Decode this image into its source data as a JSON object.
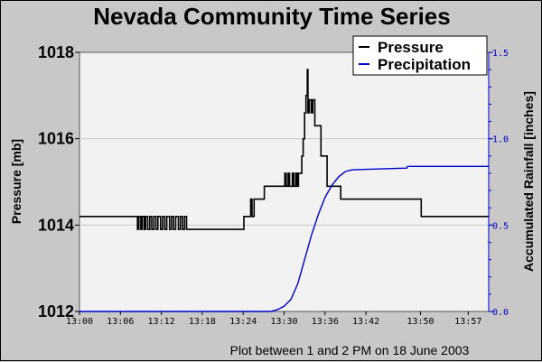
{
  "chart_data": {
    "type": "line",
    "title": "Nevada Community Time Series",
    "ylabel_left": "Pressure [mb]",
    "ylabel_right": "Accumulated Rainfall [inches]",
    "caption": "Plot between 1 and 2 PM on 18 June 2003",
    "xlim": [
      0,
      60
    ],
    "x_tick_values": [
      0,
      6,
      12,
      18,
      24,
      30,
      36,
      42,
      50,
      57
    ],
    "x_tick_labels": [
      "13:00",
      "13:06",
      "13:12",
      "13:18",
      "13:24",
      "13:30",
      "13:36",
      "13:42",
      "13:50",
      "13:57"
    ],
    "ylim_left": [
      1012,
      1018
    ],
    "left_ticks": [
      "1018",
      "1016",
      "1014",
      "1012"
    ],
    "ylim_right": [
      0,
      1.5
    ],
    "right_ticks": [
      "1.5",
      "1.0",
      "0.5",
      "0.0"
    ],
    "grid": true,
    "legend_position": "top-right",
    "series": [
      {
        "name": "Pressure",
        "axis": "left",
        "color": "#000000",
        "step": true,
        "points": [
          [
            0,
            1014.2
          ],
          [
            8.4,
            1014.2
          ],
          [
            8.5,
            1013.9
          ],
          [
            8.7,
            1014.2
          ],
          [
            9.0,
            1013.9
          ],
          [
            9.2,
            1014.2
          ],
          [
            9.5,
            1013.9
          ],
          [
            9.7,
            1014.2
          ],
          [
            10.0,
            1013.9
          ],
          [
            10.3,
            1014.2
          ],
          [
            10.6,
            1013.9
          ],
          [
            10.9,
            1014.2
          ],
          [
            11.2,
            1013.9
          ],
          [
            11.5,
            1014.2
          ],
          [
            11.9,
            1013.9
          ],
          [
            12.2,
            1014.2
          ],
          [
            12.5,
            1013.9
          ],
          [
            12.8,
            1014.2
          ],
          [
            13.2,
            1013.9
          ],
          [
            13.5,
            1014.2
          ],
          [
            13.8,
            1013.9
          ],
          [
            14.1,
            1014.2
          ],
          [
            14.5,
            1013.9
          ],
          [
            14.8,
            1014.2
          ],
          [
            15.1,
            1013.9
          ],
          [
            15.4,
            1014.2
          ],
          [
            15.7,
            1013.9
          ],
          [
            24,
            1013.9
          ],
          [
            24.1,
            1014.2
          ],
          [
            25,
            1014.2
          ],
          [
            25.1,
            1014.6
          ],
          [
            25.3,
            1014.2
          ],
          [
            25.6,
            1014.6
          ],
          [
            27,
            1014.6
          ],
          [
            27.1,
            1014.9
          ],
          [
            30,
            1014.9
          ],
          [
            30.1,
            1015.2
          ],
          [
            30.3,
            1014.9
          ],
          [
            30.6,
            1015.2
          ],
          [
            30.8,
            1014.9
          ],
          [
            31.2,
            1015.2
          ],
          [
            31.4,
            1014.9
          ],
          [
            31.7,
            1015.2
          ],
          [
            31.9,
            1014.9
          ],
          [
            32.1,
            1015.2
          ],
          [
            32.5,
            1015.2
          ],
          [
            32.6,
            1015.6
          ],
          [
            32.8,
            1016.0
          ],
          [
            33.0,
            1016.6
          ],
          [
            33.2,
            1017.0
          ],
          [
            33.4,
            1017.6
          ],
          [
            33.5,
            1016.6
          ],
          [
            33.7,
            1016.9
          ],
          [
            34.0,
            1016.6
          ],
          [
            34.2,
            1016.9
          ],
          [
            34.5,
            1016.3
          ],
          [
            35.3,
            1016.3
          ],
          [
            35.4,
            1015.6
          ],
          [
            36.2,
            1015.6
          ],
          [
            36.3,
            1014.9
          ],
          [
            38.2,
            1014.9
          ],
          [
            38.3,
            1014.6
          ],
          [
            50,
            1014.6
          ],
          [
            50.1,
            1014.2
          ],
          [
            60,
            1014.2
          ]
        ]
      },
      {
        "name": "Precipitation",
        "axis": "right",
        "color": "#0000cc",
        "step": false,
        "points": [
          [
            0,
            0
          ],
          [
            28,
            0
          ],
          [
            29,
            0.01
          ],
          [
            30,
            0.03
          ],
          [
            31,
            0.07
          ],
          [
            32,
            0.16
          ],
          [
            33,
            0.3
          ],
          [
            34,
            0.44
          ],
          [
            35,
            0.56
          ],
          [
            36,
            0.66
          ],
          [
            37,
            0.73
          ],
          [
            38,
            0.78
          ],
          [
            39,
            0.81
          ],
          [
            40,
            0.82
          ],
          [
            48,
            0.83
          ],
          [
            48.1,
            0.84
          ],
          [
            60,
            0.84
          ]
        ]
      }
    ]
  }
}
